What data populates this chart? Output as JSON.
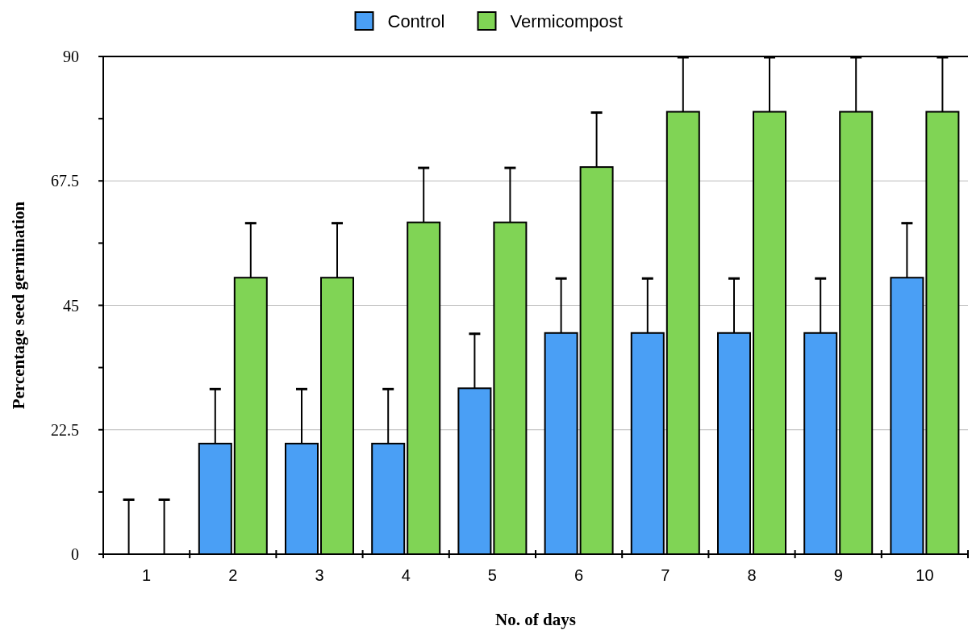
{
  "chart_data": {
    "type": "bar",
    "xlabel": "No. of days",
    "ylabel": "Percentage seed germination",
    "categories": [
      "1",
      "2",
      "3",
      "4",
      "5",
      "6",
      "7",
      "8",
      "9",
      "10"
    ],
    "series": [
      {
        "name": "Control",
        "color": "#4a9ff5",
        "values": [
          0,
          20,
          20,
          20,
          30,
          40,
          40,
          40,
          40,
          50
        ],
        "errors": [
          [
            0,
            10
          ],
          [
            20,
            30
          ],
          [
            20,
            30
          ],
          [
            20,
            30
          ],
          [
            30,
            40
          ],
          [
            40,
            50
          ],
          [
            40,
            50
          ],
          [
            40,
            50
          ],
          [
            40,
            50
          ],
          [
            50,
            60
          ]
        ]
      },
      {
        "name": "Vermicompost",
        "color": "#80d455",
        "values": [
          0,
          50,
          50,
          60,
          60,
          70,
          80,
          80,
          80,
          80
        ],
        "errors": [
          [
            0,
            10
          ],
          [
            50,
            60
          ],
          [
            50,
            60
          ],
          [
            60,
            70
          ],
          [
            60,
            70
          ],
          [
            70,
            80
          ],
          [
            80,
            90
          ],
          [
            80,
            90
          ],
          [
            80,
            90
          ],
          [
            80,
            90
          ]
        ]
      }
    ],
    "ylim": [
      0,
      90
    ],
    "yticks": [
      0,
      {
        "value": 11.25,
        "label": null
      },
      22.5,
      {
        "value": 33.75,
        "label": null
      },
      45,
      {
        "value": 56.25,
        "label": null
      },
      67.5,
      {
        "value": 78.75,
        "label": null
      },
      90
    ],
    "grid": "y",
    "legend": "top"
  }
}
